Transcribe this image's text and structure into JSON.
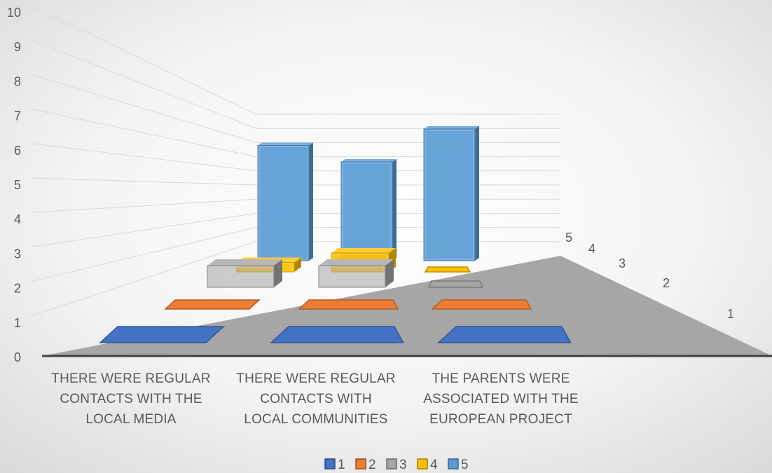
{
  "chart_data": {
    "type": "bar",
    "subtype": "3d-column",
    "title": "",
    "xlabel": "",
    "ylabel": "",
    "ylim": [
      0,
      10
    ],
    "yticks": [
      "0",
      "1",
      "2",
      "3",
      "4",
      "5",
      "6",
      "7",
      "8",
      "9",
      "10"
    ],
    "depth_labels": [
      "5",
      "4",
      "3",
      "2",
      "1"
    ],
    "categories": [
      [
        "THERE WERE REGULAR",
        "CONTACTS WITH THE",
        "LOCAL MEDIA"
      ],
      [
        "THERE WERE REGULAR",
        "CONTACTS WITH",
        "LOCAL COMMUNITIES"
      ],
      [
        "THE PARENTS WERE",
        "ASSOCIATED WITH THE",
        "EUROPEAN PROJECT"
      ]
    ],
    "series": [
      {
        "name": "1",
        "color": "#4472C4",
        "values": [
          0,
          0,
          0
        ]
      },
      {
        "name": "2",
        "color": "#ED7D31",
        "values": [
          0,
          0,
          0
        ]
      },
      {
        "name": "3",
        "color": "#A5A5A5",
        "values": [
          1,
          1,
          0
        ]
      },
      {
        "name": "4",
        "color": "#FFC000",
        "values": [
          0.5,
          1,
          0
        ]
      },
      {
        "name": "5",
        "color": "#5B9BD5",
        "values": [
          3.5,
          3,
          4
        ]
      }
    ],
    "grid": true,
    "legend": "bottom"
  }
}
